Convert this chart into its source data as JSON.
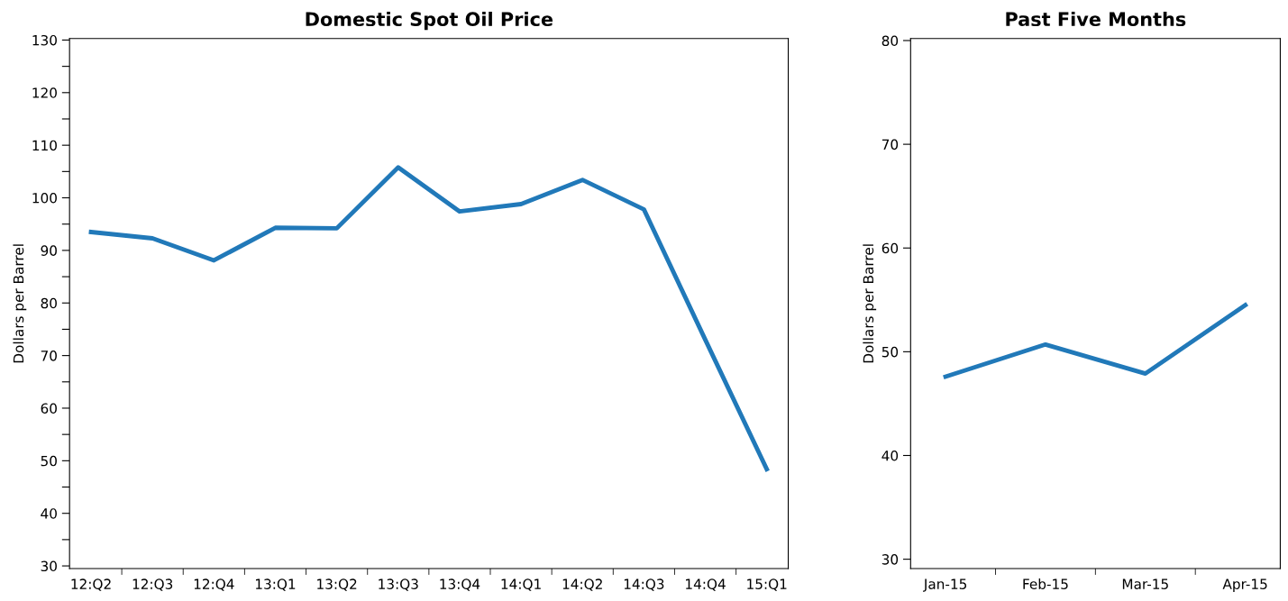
{
  "chart_data": [
    {
      "type": "line",
      "title": "Domestic Spot Oil Price",
      "ylabel": "Dollars per Barrel",
      "categories": [
        "12:Q2",
        "12:Q3",
        "12:Q4",
        "13:Q1",
        "13:Q2",
        "13:Q3",
        "13:Q4",
        "14:Q1",
        "14:Q2",
        "14:Q3",
        "14:Q4",
        "15:Q1"
      ],
      "series": [
        {
          "color": "#2179b9",
          "values": [
            93.5,
            92.3,
            88.1,
            94.3,
            94.2,
            105.8,
            97.4,
            98.8,
            103.4,
            97.8,
            73,
            48.4
          ]
        }
      ],
      "ylim": [
        29.5,
        130.3
      ],
      "yticks": [
        30,
        {
          "value": 35,
          "label": null
        },
        40,
        {
          "value": 45,
          "label": null
        },
        50,
        {
          "value": 55,
          "label": null
        },
        60,
        {
          "value": 65,
          "label": null
        },
        70,
        {
          "value": 75,
          "label": null
        },
        80,
        {
          "value": 85,
          "label": null
        },
        90,
        {
          "value": 95,
          "label": null
        },
        100,
        {
          "value": 105,
          "label": null
        },
        110,
        {
          "value": 115,
          "label": null
        },
        120,
        {
          "value": 125,
          "label": null
        },
        130
      ],
      "grid": false,
      "marker": "none",
      "line_style": "solid"
    },
    {
      "type": "line",
      "title": "Past Five Months",
      "ylabel": "Dollars per Barrel",
      "categories": [
        "Jan-15",
        "Feb-15",
        "Mar-15",
        "Apr-15"
      ],
      "series": [
        {
          "color": "#2179b9",
          "values": [
            47.6,
            50.7,
            47.9,
            54.5
          ]
        }
      ],
      "ylim": [
        29.1,
        80.2
      ],
      "yticks": [
        30,
        40,
        50,
        60,
        70,
        80
      ],
      "grid": false,
      "marker": "none",
      "line_style": "solid"
    }
  ]
}
